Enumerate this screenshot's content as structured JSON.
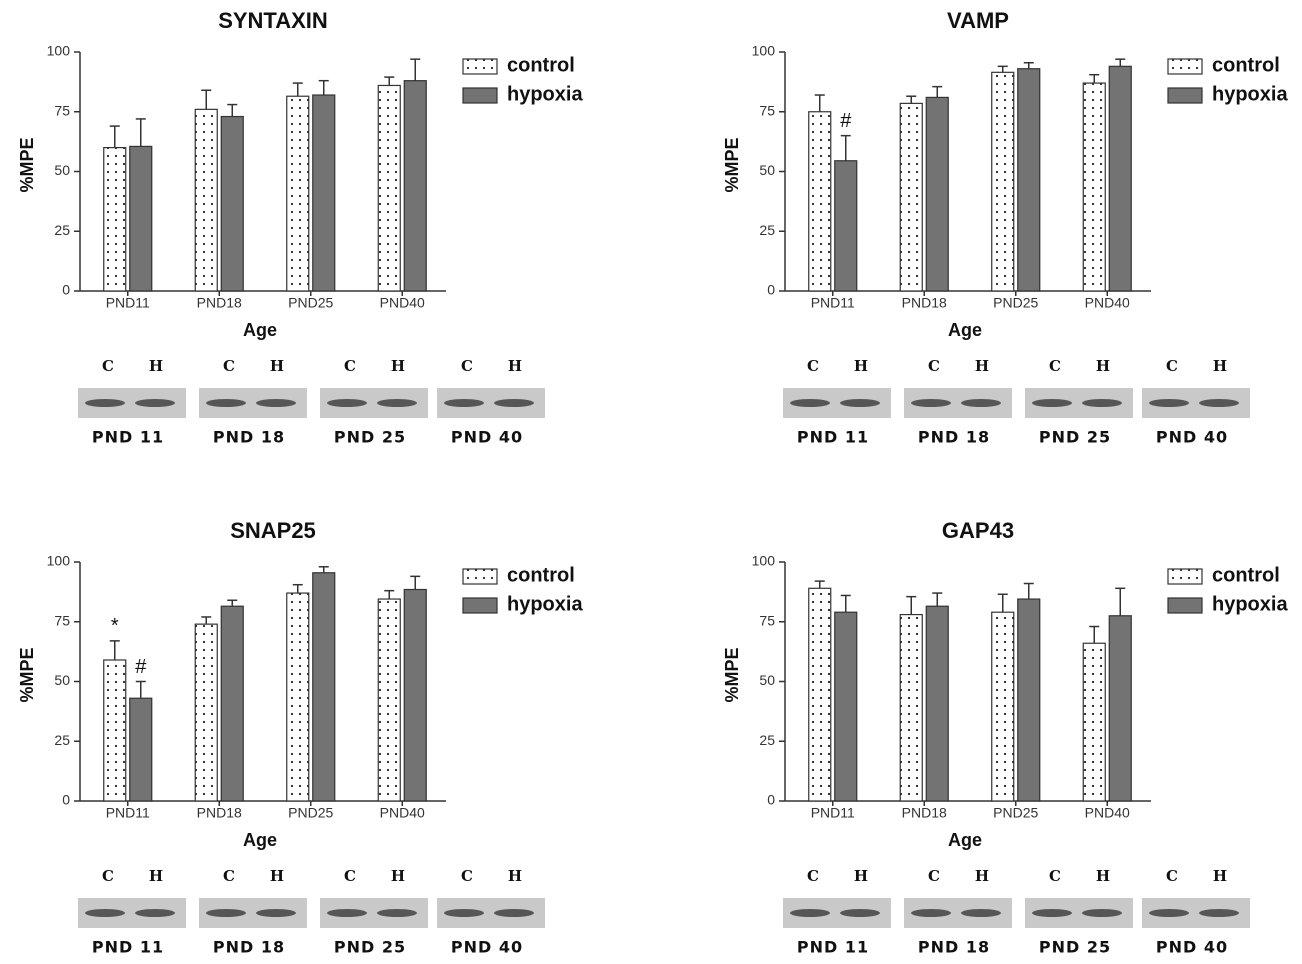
{
  "chart_data": [
    {
      "type": "bar",
      "title": "SYNTAXIN",
      "x_label": "Age",
      "y_label": "%MPE",
      "categories": [
        "PND11",
        "PND18",
        "PND25",
        "PND40"
      ],
      "series": [
        {
          "name": "control",
          "color": "#ffffff",
          "values": [
            60,
            76,
            81.5,
            86
          ],
          "errors": [
            9,
            8,
            5.5,
            3.5
          ]
        },
        {
          "name": "hypoxia",
          "color": "#737373",
          "values": [
            60.5,
            73,
            82,
            88
          ],
          "errors": [
            11.5,
            5,
            6,
            9
          ]
        }
      ],
      "ylim": [
        0,
        100
      ],
      "yticks": [
        0,
        25,
        50,
        75,
        100
      ],
      "legend": "right",
      "blot_lanes": [
        "C",
        "H"
      ],
      "blot_labels": [
        "PND 11",
        "PND 18",
        "PND 25",
        "PND 40"
      ]
    },
    {
      "type": "bar",
      "title": "VAMP",
      "x_label": "Age",
      "y_label": "%MPE",
      "categories": [
        "PND11",
        "PND18",
        "PND25",
        "PND40"
      ],
      "series": [
        {
          "name": "control",
          "color": "#ffffff",
          "values": [
            75,
            78.5,
            91.5,
            87
          ],
          "errors": [
            7,
            3,
            2.5,
            3.5
          ]
        },
        {
          "name": "hypoxia",
          "color": "#737373",
          "values": [
            54.5,
            81,
            93,
            94
          ],
          "errors": [
            10.5,
            4.5,
            2.5,
            3
          ],
          "markers": [
            "#",
            null,
            null,
            null
          ]
        }
      ],
      "ylim": [
        0,
        100
      ],
      "yticks": [
        0,
        25,
        50,
        75,
        100
      ],
      "legend": "right",
      "blot_lanes": [
        "C",
        "H"
      ],
      "blot_labels": [
        "PND 11",
        "PND 18",
        "PND 25",
        "PND 40"
      ]
    },
    {
      "type": "bar",
      "title": "SNAP25",
      "x_label": "Age",
      "y_label": "%MPE",
      "categories": [
        "PND11",
        "PND18",
        "PND25",
        "PND40"
      ],
      "series": [
        {
          "name": "control",
          "color": "#ffffff",
          "values": [
            59,
            74,
            87,
            84.5
          ],
          "errors": [
            8,
            3,
            3.5,
            3.5
          ],
          "markers": [
            "*",
            null,
            null,
            null
          ]
        },
        {
          "name": "hypoxia",
          "color": "#737373",
          "values": [
            43,
            81.5,
            95.5,
            88.5
          ],
          "errors": [
            7,
            2.5,
            2.5,
            5.5
          ],
          "markers": [
            "#",
            null,
            null,
            null
          ]
        }
      ],
      "ylim": [
        0,
        100
      ],
      "yticks": [
        0,
        25,
        50,
        75,
        100
      ],
      "legend": "right",
      "blot_lanes": [
        "C",
        "H"
      ],
      "blot_labels": [
        "PND 11",
        "PND 18",
        "PND 25",
        "PND 40"
      ]
    },
    {
      "type": "bar",
      "title": "GAP43",
      "x_label": "Age",
      "y_label": "%MPE",
      "categories": [
        "PND11",
        "PND18",
        "PND25",
        "PND40"
      ],
      "series": [
        {
          "name": "control",
          "color": "#ffffff",
          "values": [
            89,
            78,
            79,
            66
          ],
          "errors": [
            3,
            7.5,
            7.5,
            7
          ]
        },
        {
          "name": "hypoxia",
          "color": "#737373",
          "values": [
            79,
            81.5,
            84.5,
            77.5
          ],
          "errors": [
            7,
            5.5,
            6.5,
            11.5
          ]
        }
      ],
      "ylim": [
        0,
        100
      ],
      "yticks": [
        0,
        25,
        50,
        75,
        100
      ],
      "legend": "right",
      "blot_lanes": [
        "C",
        "H"
      ],
      "blot_labels": [
        "PND 11",
        "PND 18",
        "PND 25",
        "PND 40"
      ]
    }
  ]
}
